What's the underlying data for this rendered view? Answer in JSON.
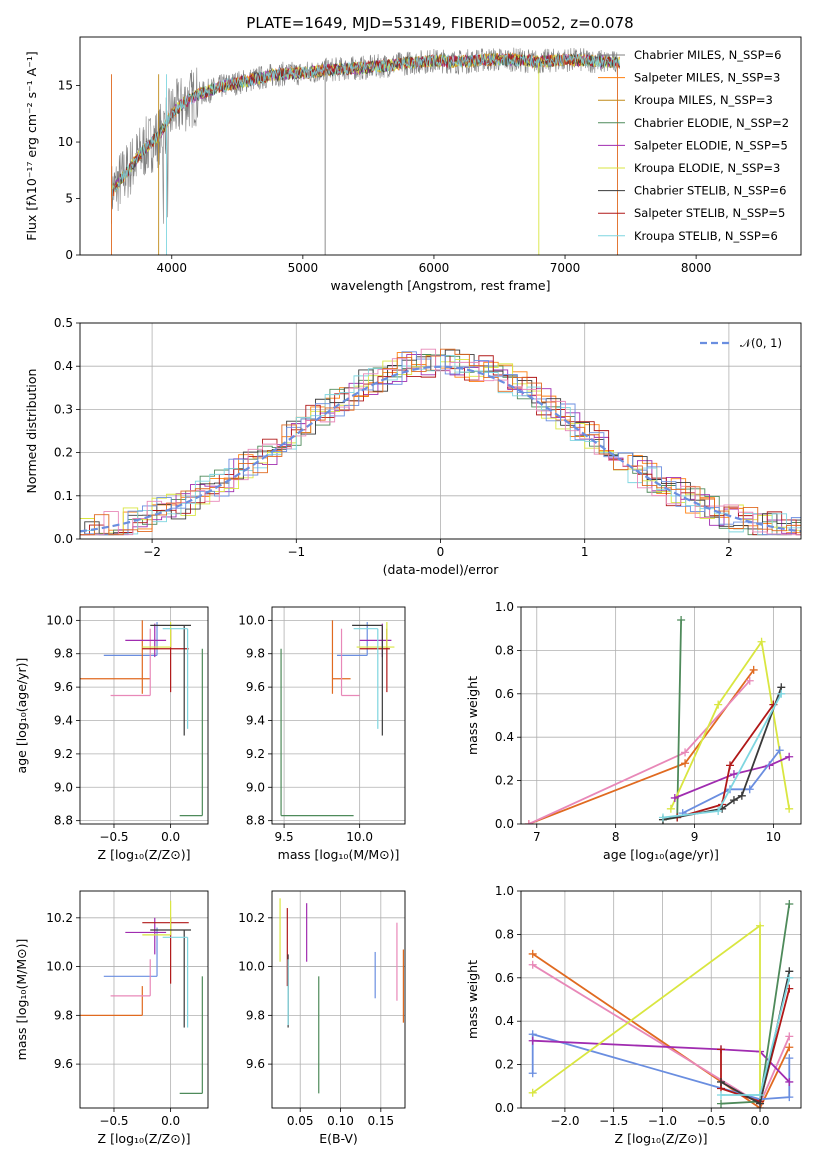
{
  "title": "PLATE=1649, MJD=53149, FIBERID=0052, z=0.078",
  "colors": [
    "#808080",
    "#ff7f0e",
    "#c08a18",
    "#4e8a5a",
    "#a02cb0",
    "#d9e640",
    "#3a3a3a",
    "#b01818",
    "#7fd6e0",
    "#6a8ee0",
    "#e888b8",
    "#e06a20"
  ],
  "chart_data": [
    {
      "name": "spectrum",
      "type": "line",
      "xlabel": "wavelength [Angstrom, rest frame]",
      "ylabel": "Flux [fλ10⁻¹⁷ erg cm⁻² s⁻¹ A⁻¹]",
      "xlim": [
        3300,
        8800
      ],
      "ylim": [
        0,
        19.3
      ],
      "xticks": [
        "4000",
        "5000",
        "6000",
        "7000",
        "8000"
      ],
      "yticks": [
        "0",
        "5",
        "10",
        "15"
      ],
      "grid": false,
      "legend_position": "top-right",
      "legend": [
        {
          "label": "Chabrier MILES, N_SSP=6",
          "color": "#808080"
        },
        {
          "label": "Salpeter MILES, N_SSP=3",
          "color": "#ff7f0e"
        },
        {
          "label": "Kroupa MILES, N_SSP=3",
          "color": "#c08a18"
        },
        {
          "label": "Chabrier ELODIE, N_SSP=2",
          "color": "#4e8a5a"
        },
        {
          "label": "Salpeter ELODIE, N_SSP=5",
          "color": "#a02cb0"
        },
        {
          "label": "Kroupa ELODIE, N_SSP=3",
          "color": "#d9e640"
        },
        {
          "label": "Chabrier STELIB, N_SSP=6",
          "color": "#3a3a3a"
        },
        {
          "label": "Salpeter STELIB, N_SSP=5",
          "color": "#b01818"
        },
        {
          "label": "Kroupa STELIB, N_SSP=6",
          "color": "#7fd6e0"
        }
      ],
      "model_continuum": {
        "x": [
          3540,
          3600,
          3700,
          3800,
          3900,
          4000,
          4100,
          4200,
          4400,
          4600,
          4800,
          5000,
          5200,
          5500,
          5800,
          6000,
          6200,
          6400,
          6600,
          6800,
          7000,
          7200,
          7400
        ],
        "y": [
          5.5,
          6.5,
          8,
          9.5,
          10.5,
          12.5,
          13.5,
          14.2,
          15,
          15.5,
          16,
          16.1,
          16.4,
          16.6,
          17,
          17.2,
          17.1,
          17.3,
          17.3,
          17.1,
          17.3,
          17.2,
          17
        ]
      }
    },
    {
      "name": "residual_histogram",
      "type": "histogram",
      "xlabel": "(data-model)/error",
      "ylabel": "Normed distribution",
      "xlim": [
        -2.5,
        2.5
      ],
      "ylim": [
        0,
        0.5
      ],
      "xticks": [
        "−2",
        "−1",
        "0",
        "1",
        "2"
      ],
      "yticks": [
        "0.0",
        "0.1",
        "0.2",
        "0.3",
        "0.4",
        "0.5"
      ],
      "grid": true,
      "legend_position": "top-right",
      "legend": [
        {
          "label": "𝒩(0, 1)",
          "color": "#6a8ee0"
        }
      ],
      "normal_curve": {
        "mean": 0,
        "sd": 1
      }
    },
    {
      "name": "age_vs_Z",
      "type": "errorbar",
      "xlabel": "Z [log₁₀(Z/Z⊙)]",
      "ylabel": "age  [log₁₀(age/yr)]",
      "xlim": [
        -0.8,
        0.33
      ],
      "ylim": [
        8.78,
        10.08
      ],
      "xticks": [
        "−0.5",
        "0.0"
      ],
      "yticks": [
        "8.8",
        "9.0",
        "9.2",
        "9.4",
        "9.6",
        "9.8",
        "10.0"
      ],
      "grid": true,
      "points": [
        {
          "x": -0.12,
          "y": 9.79,
          "xerr": [
            0.47,
            0.0
          ],
          "yerr": [
            0.0,
            0.2
          ],
          "color": "#6a8ee0"
        },
        {
          "x": -0.25,
          "y": 9.65,
          "xerr": [
            0.55,
            0.07
          ],
          "yerr": [
            0.09,
            0.35
          ],
          "color": "#e06a20"
        },
        {
          "x": -0.18,
          "y": 9.55,
          "xerr": [
            0.35,
            0.0
          ],
          "yerr": [
            0.0,
            0.4
          ],
          "color": "#e888b8"
        },
        {
          "x": -0.14,
          "y": 9.88,
          "xerr": [
            0.26,
            0.1
          ],
          "yerr": [
            0.1,
            0.1
          ],
          "color": "#a02cb0"
        },
        {
          "x": 0.0,
          "y": 9.83,
          "xerr": [
            0.25,
            0.16
          ],
          "yerr": [
            0.26,
            0.12
          ],
          "color": "#b01818"
        },
        {
          "x": 0.0,
          "y": 9.84,
          "xerr": [
            0.25,
            0.0
          ],
          "yerr": [
            0.0,
            0.15
          ],
          "color": "#d9e640"
        },
        {
          "x": 0.12,
          "y": 9.97,
          "xerr": [
            0.3,
            0.06
          ],
          "yerr": [
            0.66,
            0.0
          ],
          "color": "#3a3a3a"
        },
        {
          "x": 0.15,
          "y": 9.95,
          "xerr": [
            0.22,
            0.0
          ],
          "yerr": [
            0.6,
            0.0
          ],
          "color": "#7fd6e0"
        },
        {
          "x": 0.28,
          "y": 8.83,
          "xerr": [
            0.2,
            0.0
          ],
          "yerr": [
            0.0,
            1.0
          ],
          "color": "#4e8a5a"
        }
      ]
    },
    {
      "name": "age_vs_mass",
      "type": "errorbar",
      "xlabel": "mass [log₁₀(M/M⊙)]",
      "ylabel": "",
      "xlim": [
        9.42,
        10.3
      ],
      "ylim": [
        8.78,
        10.08
      ],
      "xticks": [
        "9.5",
        "10.0"
      ],
      "yticks": [
        "8.8",
        "9.0",
        "9.2",
        "9.4",
        "9.6",
        "9.8",
        "10.0"
      ],
      "grid": true,
      "points": [
        {
          "x": 10.05,
          "y": 9.79,
          "xerr": [
            0.2,
            0.0
          ],
          "yerr": [
            0.0,
            0.2
          ],
          "color": "#6a8ee0"
        },
        {
          "x": 9.82,
          "y": 9.65,
          "xerr": [
            0.0,
            0.12
          ],
          "yerr": [
            0.09,
            0.35
          ],
          "color": "#e06a20"
        },
        {
          "x": 9.88,
          "y": 9.55,
          "xerr": [
            0.0,
            0.12
          ],
          "yerr": [
            0.0,
            0.4
          ],
          "color": "#e888b8"
        },
        {
          "x": 10.15,
          "y": 9.88,
          "xerr": [
            0.15,
            0.06
          ],
          "yerr": [
            0.1,
            0.1
          ],
          "color": "#a02cb0"
        },
        {
          "x": 10.18,
          "y": 9.83,
          "xerr": [
            0.18,
            0.02
          ],
          "yerr": [
            0.26,
            0.12
          ],
          "color": "#b01818"
        },
        {
          "x": 10.18,
          "y": 9.84,
          "xerr": [
            0.2,
            0.05
          ],
          "yerr": [
            0.0,
            0.15
          ],
          "color": "#d9e640"
        },
        {
          "x": 10.15,
          "y": 9.97,
          "xerr": [
            0.2,
            0.0
          ],
          "yerr": [
            0.66,
            0.0
          ],
          "color": "#3a3a3a"
        },
        {
          "x": 10.12,
          "y": 9.95,
          "xerr": [
            0.16,
            0.0
          ],
          "yerr": [
            0.6,
            0.0
          ],
          "color": "#7fd6e0"
        },
        {
          "x": 9.48,
          "y": 8.83,
          "xerr": [
            0.0,
            0.48
          ],
          "yerr": [
            0.0,
            1.0
          ],
          "color": "#4e8a5a"
        }
      ]
    },
    {
      "name": "massweight_vs_age",
      "type": "line",
      "xlabel": "age  [log₁₀(age/yr)]",
      "ylabel": "mass weight",
      "xlim": [
        6.8,
        10.35
      ],
      "ylim": [
        0,
        1.0
      ],
      "xticks": [
        "7",
        "8",
        "9",
        "10"
      ],
      "yticks": [
        "0.0",
        "0.2",
        "0.4",
        "0.6",
        "0.8",
        "1.0"
      ],
      "grid": true,
      "series": [
        {
          "color": "#e06a20",
          "x": [
            6.9,
            8.88,
            9.75
          ],
          "y": [
            0.0,
            0.28,
            0.71
          ]
        },
        {
          "color": "#e888b8",
          "x": [
            6.9,
            8.88,
            9.7
          ],
          "y": [
            0.0,
            0.33,
            0.66
          ]
        },
        {
          "color": "#4e8a5a",
          "x": [
            8.6,
            8.78,
            8.83
          ],
          "y": [
            0.02,
            0.03,
            0.94
          ]
        },
        {
          "color": "#d9e640",
          "x": [
            8.7,
            9.3,
            9.85,
            10.2
          ],
          "y": [
            0.07,
            0.55,
            0.84,
            0.07
          ]
        },
        {
          "color": "#a02cb0",
          "x": [
            8.75,
            9.5,
            9.95,
            10.2
          ],
          "y": [
            0.12,
            0.23,
            0.27,
            0.31
          ]
        },
        {
          "color": "#6a8ee0",
          "x": [
            8.85,
            9.45,
            9.7,
            10.08
          ],
          "y": [
            0.05,
            0.16,
            0.16,
            0.34
          ]
        },
        {
          "color": "#b01818",
          "x": [
            8.78,
            9.35,
            9.45,
            10.0
          ],
          "y": [
            0.03,
            0.09,
            0.27,
            0.55
          ]
        },
        {
          "color": "#3a3a3a",
          "x": [
            8.6,
            9.35,
            9.5,
            9.6,
            10.1
          ],
          "y": [
            0.02,
            0.07,
            0.11,
            0.13,
            0.63
          ]
        },
        {
          "color": "#7fd6e0",
          "x": [
            8.6,
            9.3,
            10.1
          ],
          "y": [
            0.03,
            0.06,
            0.6
          ]
        }
      ]
    },
    {
      "name": "mass_vs_Z",
      "type": "errorbar",
      "xlabel": "Z [log₁₀(Z/Z⊙)]",
      "ylabel": "mass [log₁₀(M/M⊙)]",
      "xlim": [
        -0.8,
        0.33
      ],
      "ylim": [
        9.42,
        10.31
      ],
      "xticks": [
        "−0.5",
        "0.0"
      ],
      "yticks": [
        "9.6",
        "9.8",
        "10.0",
        "10.2"
      ],
      "grid": true,
      "points": [
        {
          "x": -0.12,
          "y": 9.96,
          "xerr": [
            0.47,
            0.0
          ],
          "yerr": [
            0.0,
            0.2
          ],
          "color": "#6a8ee0"
        },
        {
          "x": -0.25,
          "y": 9.8,
          "xerr": [
            0.55,
            0.0
          ],
          "yerr": [
            0.0,
            0.12
          ],
          "color": "#e06a20"
        },
        {
          "x": -0.18,
          "y": 9.88,
          "xerr": [
            0.35,
            0.0
          ],
          "yerr": [
            0.0,
            0.15
          ],
          "color": "#e888b8"
        },
        {
          "x": -0.14,
          "y": 10.14,
          "xerr": [
            0.26,
            0.1
          ],
          "yerr": [
            0.09,
            0.06
          ],
          "color": "#a02cb0"
        },
        {
          "x": 0.0,
          "y": 10.18,
          "xerr": [
            0.25,
            0.16
          ],
          "yerr": [
            0.25,
            0.02
          ],
          "color": "#b01818"
        },
        {
          "x": 0.0,
          "y": 10.13,
          "xerr": [
            0.25,
            0.0
          ],
          "yerr": [
            0.0,
            0.14
          ],
          "color": "#d9e640"
        },
        {
          "x": 0.12,
          "y": 10.15,
          "xerr": [
            0.3,
            0.06
          ],
          "yerr": [
            0.4,
            0.0
          ],
          "color": "#3a3a3a"
        },
        {
          "x": 0.15,
          "y": 10.12,
          "xerr": [
            0.22,
            0.0
          ],
          "yerr": [
            0.37,
            0.0
          ],
          "color": "#7fd6e0"
        },
        {
          "x": 0.28,
          "y": 9.48,
          "xerr": [
            0.2,
            0.0
          ],
          "yerr": [
            0.0,
            0.48
          ],
          "color": "#4e8a5a"
        }
      ]
    },
    {
      "name": "mass_vs_EBV",
      "type": "errorbar",
      "xlabel": "E(B-V)",
      "ylabel": "",
      "xlim": [
        0.015,
        0.18
      ],
      "ylim": [
        9.42,
        10.31
      ],
      "xticks": [
        "0.05",
        "0.10",
        "0.15"
      ],
      "yticks": [
        "9.6",
        "9.8",
        "10.0",
        "10.2"
      ],
      "grid": true,
      "points": [
        {
          "x": 0.143,
          "y": 9.96,
          "yerr": [
            0.09,
            0.1
          ],
          "color": "#6a8ee0"
        },
        {
          "x": 0.178,
          "y": 9.9,
          "yerr": [
            0.13,
            0.17
          ],
          "color": "#e06a20"
        },
        {
          "x": 0.17,
          "y": 10.0,
          "yerr": [
            0.14,
            0.18
          ],
          "color": "#e888b8"
        },
        {
          "x": 0.058,
          "y": 10.14,
          "yerr": [
            0.12,
            0.12
          ],
          "color": "#a02cb0"
        },
        {
          "x": 0.034,
          "y": 10.1,
          "yerr": [
            0.18,
            0.14
          ],
          "color": "#b01818"
        },
        {
          "x": 0.025,
          "y": 10.14,
          "yerr": [
            0.12,
            0.14
          ],
          "color": "#d9e640"
        },
        {
          "x": 0.035,
          "y": 9.95,
          "yerr": [
            0.2,
            0.1
          ],
          "color": "#3a3a3a"
        },
        {
          "x": 0.035,
          "y": 9.93,
          "yerr": [
            0.17,
            0.1
          ],
          "color": "#7fd6e0"
        },
        {
          "x": 0.073,
          "y": 9.72,
          "yerr": [
            0.24,
            0.24
          ],
          "color": "#4e8a5a"
        }
      ]
    },
    {
      "name": "massweight_vs_Z",
      "type": "line",
      "xlabel": "Z [log₁₀(Z/Z⊙)]",
      "ylabel": "mass weight",
      "xlim": [
        -2.45,
        0.42
      ],
      "ylim": [
        0,
        1.0
      ],
      "xticks": [
        "−2.0",
        "−1.5",
        "−1.0",
        "−0.5",
        "0.0"
      ],
      "yticks": [
        "0.0",
        "0.2",
        "0.4",
        "0.6",
        "0.8",
        "1.0"
      ],
      "grid": true,
      "series": [
        {
          "color": "#e06a20",
          "x": [
            -2.33,
            0.0,
            0.3
          ],
          "y": [
            0.71,
            0.0,
            0.28
          ]
        },
        {
          "color": "#e888b8",
          "x": [
            -2.33,
            0.0,
            0.3
          ],
          "y": [
            0.66,
            0.02,
            0.33
          ]
        },
        {
          "color": "#6a8ee0",
          "x": [
            -2.33,
            -2.33,
            0.0,
            0.3,
            0.3
          ],
          "y": [
            0.16,
            0.34,
            0.04,
            0.05,
            0.23
          ]
        },
        {
          "color": "#a02cb0",
          "x": [
            -2.33,
            -0.4,
            0.0,
            0.3
          ],
          "y": [
            0.31,
            0.27,
            0.26,
            0.12
          ]
        },
        {
          "color": "#d9e640",
          "x": [
            -2.33,
            0.0,
            0.0
          ],
          "y": [
            0.07,
            0.84,
            0.06
          ]
        },
        {
          "color": "#4e8a5a",
          "x": [
            -0.4,
            0.0,
            0.3
          ],
          "y": [
            0.02,
            0.03,
            0.94
          ]
        },
        {
          "color": "#b01818",
          "x": [
            -0.4,
            -0.4,
            0.0,
            0.3
          ],
          "y": [
            0.27,
            0.09,
            0.03,
            0.55
          ]
        },
        {
          "color": "#3a3a3a",
          "x": [
            -0.4,
            0.0,
            0.3
          ],
          "y": [
            0.12,
            0.02,
            0.63
          ]
        },
        {
          "color": "#7fd6e0",
          "x": [
            -0.4,
            0.0,
            0.3
          ],
          "y": [
            0.06,
            0.06,
            0.6
          ]
        }
      ]
    }
  ]
}
